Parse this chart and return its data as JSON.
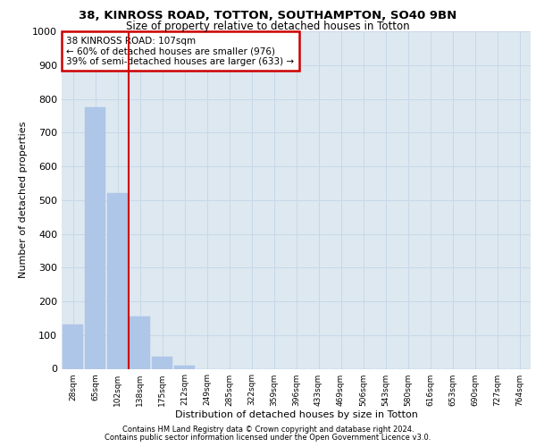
{
  "title1": "38, KINROSS ROAD, TOTTON, SOUTHAMPTON, SO40 9BN",
  "title2": "Size of property relative to detached houses in Totton",
  "xlabel": "Distribution of detached houses by size in Totton",
  "ylabel": "Number of detached properties",
  "bin_labels": [
    "28sqm",
    "65sqm",
    "102sqm",
    "138sqm",
    "175sqm",
    "212sqm",
    "249sqm",
    "285sqm",
    "322sqm",
    "359sqm",
    "396sqm",
    "433sqm",
    "469sqm",
    "506sqm",
    "543sqm",
    "580sqm",
    "616sqm",
    "653sqm",
    "690sqm",
    "727sqm",
    "764sqm"
  ],
  "bar_values": [
    130,
    775,
    520,
    155,
    37,
    10,
    0,
    0,
    0,
    0,
    0,
    0,
    0,
    0,
    0,
    0,
    0,
    0,
    0,
    0,
    0
  ],
  "bar_color": "#aec6e8",
  "bar_edgecolor": "#aec6e8",
  "vline_color": "#cc0000",
  "vline_position": 2.5,
  "annotation_title": "38 KINROSS ROAD: 107sqm",
  "annotation_line1": "← 60% of detached houses are smaller (976)",
  "annotation_line2": "39% of semi-detached houses are larger (633) →",
  "annotation_box_color": "#cc0000",
  "ylim": [
    0,
    1000
  ],
  "yticks": [
    0,
    100,
    200,
    300,
    400,
    500,
    600,
    700,
    800,
    900,
    1000
  ],
  "grid_color": "#c8d8e8",
  "bg_color": "#dde8f0",
  "footer1": "Contains HM Land Registry data © Crown copyright and database right 2024.",
  "footer2": "Contains public sector information licensed under the Open Government Licence v3.0."
}
